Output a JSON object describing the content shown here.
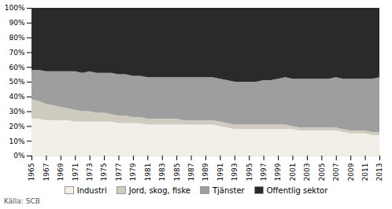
{
  "chart_data": {
    "type": "area",
    "stacked": true,
    "x": [
      1965,
      1966,
      1967,
      1968,
      1969,
      1970,
      1971,
      1972,
      1973,
      1974,
      1975,
      1976,
      1977,
      1978,
      1979,
      1980,
      1981,
      1982,
      1983,
      1984,
      1985,
      1986,
      1987,
      1988,
      1989,
      1990,
      1991,
      1992,
      1993,
      1994,
      1995,
      1996,
      1997,
      1998,
      1999,
      2000,
      2001,
      2002,
      2003,
      2004,
      2005,
      2006,
      2007,
      2008,
      2009,
      2010,
      2011,
      2012,
      2013
    ],
    "series": [
      {
        "name": "Industri",
        "color": "#f2efe9",
        "values": [
          25,
          25,
          24,
          24,
          24,
          24,
          23,
          23,
          23,
          23,
          23,
          23,
          22,
          22,
          22,
          22,
          21,
          21,
          21,
          21,
          21,
          21,
          21,
          21,
          21,
          21,
          20,
          19,
          18,
          18,
          18,
          18,
          18,
          18,
          18,
          18,
          18,
          17,
          17,
          17,
          17,
          17,
          17,
          16,
          15,
          15,
          15,
          14,
          14
        ]
      },
      {
        "name": "Jord, skog, fiske",
        "color": "#d0cbbf",
        "values": [
          13,
          12,
          11,
          10,
          9,
          8,
          8,
          7,
          7,
          6,
          6,
          5,
          5,
          5,
          4,
          4,
          4,
          4,
          4,
          4,
          4,
          3,
          3,
          3,
          3,
          3,
          3,
          3,
          3,
          3,
          3,
          3,
          3,
          3,
          3,
          3,
          2,
          2,
          2,
          2,
          2,
          2,
          2,
          2,
          2,
          2,
          2,
          2,
          2
        ]
      },
      {
        "name": "Tjänster",
        "color": "#9e9e9e",
        "values": [
          20,
          21,
          22,
          23,
          24,
          25,
          26,
          26,
          27,
          27,
          27,
          28,
          28,
          28,
          28,
          28,
          28,
          28,
          28,
          28,
          28,
          29,
          29,
          29,
          29,
          29,
          29,
          29,
          29,
          29,
          29,
          29,
          30,
          30,
          31,
          32,
          32,
          33,
          33,
          33,
          33,
          33,
          34,
          34,
          35,
          35,
          35,
          36,
          37
        ]
      },
      {
        "name": "Offentlig sektor",
        "color": "#2a2a2a",
        "values": [
          42,
          42,
          43,
          43,
          43,
          43,
          43,
          44,
          43,
          44,
          44,
          44,
          45,
          45,
          46,
          46,
          47,
          47,
          47,
          47,
          47,
          47,
          47,
          47,
          47,
          47,
          48,
          49,
          50,
          50,
          50,
          50,
          49,
          49,
          48,
          47,
          48,
          48,
          48,
          48,
          48,
          48,
          47,
          48,
          48,
          48,
          48,
          48,
          47
        ]
      }
    ],
    "xlim": [
      1965,
      2013
    ],
    "xticks": [
      1965,
      1967,
      1969,
      1971,
      1973,
      1975,
      1977,
      1979,
      1981,
      1983,
      1985,
      1987,
      1989,
      1991,
      1993,
      1995,
      1997,
      1999,
      2001,
      2003,
      2005,
      2007,
      2009,
      2011,
      2013
    ],
    "ylim": [
      0,
      100
    ],
    "yticks": [
      {
        "value": 0,
        "label": "0%"
      },
      {
        "value": 10,
        "label": "10%"
      },
      {
        "value": 20,
        "label": "20%"
      },
      {
        "value": 30,
        "label": "30%"
      },
      {
        "value": 40,
        "label": "40%"
      },
      {
        "value": 50,
        "label": "50%"
      },
      {
        "value": 60,
        "label": "60%"
      },
      {
        "value": 70,
        "label": "70%"
      },
      {
        "value": 80,
        "label": "80%"
      },
      {
        "value": 90,
        "label": "90%"
      },
      {
        "value": 100,
        "label": "100%"
      }
    ],
    "grid": "y",
    "legend": "bottom",
    "annotations": [
      "Källa: SCB"
    ]
  }
}
